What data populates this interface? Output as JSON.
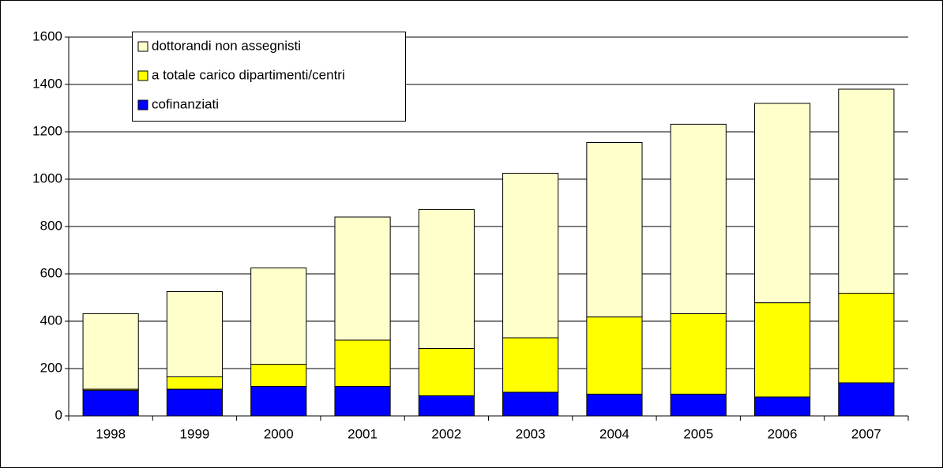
{
  "chart_data": {
    "type": "stacked_bar",
    "categories": [
      "1998",
      "1999",
      "2000",
      "2001",
      "2002",
      "2003",
      "2004",
      "2005",
      "2006",
      "2007"
    ],
    "series": [
      {
        "name": "dottorandi non assegnisti",
        "color": "#ffffcc",
        "values": [
          319,
          360,
          407,
          520,
          587,
          695,
          737,
          800,
          842,
          862
        ]
      },
      {
        "name": "a totale carico dipartimenti/centri",
        "color": "#ffff00",
        "values": [
          5,
          52,
          93,
          195,
          200,
          230,
          326,
          340,
          398,
          378
        ]
      },
      {
        "name": "cofinanziati",
        "color": "#0000ff",
        "values": [
          108,
          113,
          125,
          125,
          85,
          100,
          92,
          92,
          80,
          140
        ]
      }
    ],
    "ylim": [
      0,
      1600
    ],
    "yticks": [
      0,
      200,
      400,
      600,
      800,
      1000,
      1200,
      1400,
      1600
    ],
    "grid": true
  }
}
